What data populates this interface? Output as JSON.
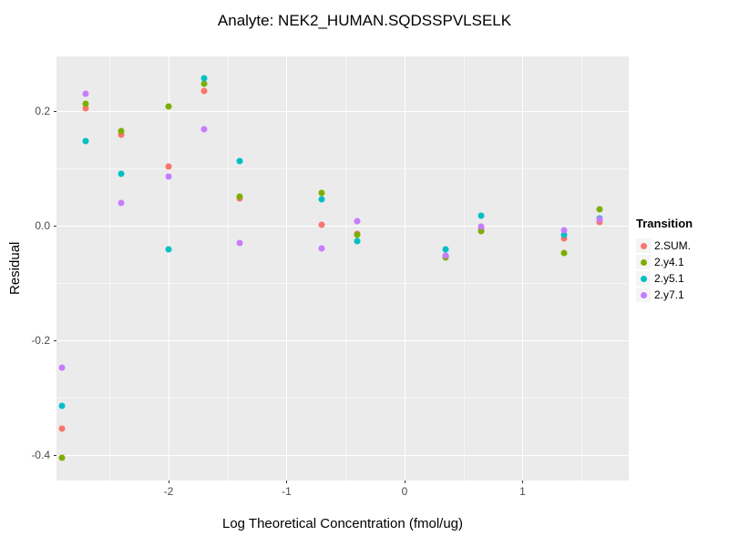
{
  "chart_data": {
    "type": "scatter",
    "title": "Analyte: NEK2_HUMAN.SQDSSPVLSELK",
    "xlabel": "Log Theoretical Concentration (fmol/ug)",
    "ylabel": "Residual",
    "xlim": [
      -2.95,
      1.9
    ],
    "ylim": [
      -0.445,
      0.295
    ],
    "grid": true,
    "panel_background": "#EBEBEB",
    "legend_title": "Transition",
    "legend_position": "right",
    "x_ticks": [
      {
        "v": -2,
        "label": "-2"
      },
      {
        "v": -1,
        "label": "-1"
      },
      {
        "v": 0,
        "label": "0"
      },
      {
        "v": 1,
        "label": "1"
      }
    ],
    "y_ticks": [
      {
        "v": 0.2,
        "label": "0.2"
      },
      {
        "v": 0.0,
        "label": "0.0"
      },
      {
        "v": -0.2,
        "label": "-0.2"
      },
      {
        "v": -0.4,
        "label": "-0.4"
      }
    ],
    "x_minor": [
      -2.5,
      -1.5,
      -0.5,
      0.5,
      1.5
    ],
    "y_minor": [
      0.1,
      -0.1,
      -0.3
    ],
    "series": [
      {
        "label": "2.SUM.",
        "color": "#F8766D",
        "points": [
          [
            -2.9,
            -0.355
          ],
          [
            -2.7,
            0.205
          ],
          [
            -2.4,
            0.158
          ],
          [
            -2.0,
            0.103
          ],
          [
            -1.7,
            0.235
          ],
          [
            -1.4,
            0.047
          ],
          [
            -0.7,
            0.001
          ],
          [
            -0.4,
            -0.014
          ],
          [
            0.35,
            -0.052
          ],
          [
            0.65,
            -0.005
          ],
          [
            1.35,
            -0.022
          ],
          [
            1.65,
            0.006
          ]
        ]
      },
      {
        "label": "2.y4.1",
        "color": "#7CAE00",
        "points": [
          [
            -2.9,
            -0.405
          ],
          [
            -2.7,
            0.213
          ],
          [
            -2.4,
            0.165
          ],
          [
            -2.0,
            0.207
          ],
          [
            -1.7,
            0.247
          ],
          [
            -1.4,
            0.05
          ],
          [
            -0.7,
            0.057
          ],
          [
            -0.4,
            -0.016
          ],
          [
            0.35,
            -0.056
          ],
          [
            0.65,
            -0.01
          ],
          [
            1.35,
            -0.048
          ],
          [
            1.65,
            0.028
          ]
        ]
      },
      {
        "label": "2.y5.1",
        "color": "#00BFC4",
        "points": [
          [
            -2.9,
            -0.315
          ],
          [
            -2.7,
            0.147
          ],
          [
            -2.4,
            0.09
          ],
          [
            -2.0,
            -0.042
          ],
          [
            -1.7,
            0.257
          ],
          [
            -1.4,
            0.113
          ],
          [
            -0.7,
            0.045
          ],
          [
            -0.4,
            -0.027
          ],
          [
            0.35,
            -0.042
          ],
          [
            0.65,
            0.017
          ],
          [
            1.35,
            -0.016
          ],
          [
            1.65,
            0.012
          ]
        ]
      },
      {
        "label": "2.y7.1",
        "color": "#C77CFF",
        "points": [
          [
            -2.9,
            -0.248
          ],
          [
            -2.7,
            0.23
          ],
          [
            -2.4,
            0.04
          ],
          [
            -2.0,
            0.085
          ],
          [
            -1.7,
            0.168
          ],
          [
            -1.4,
            -0.03
          ],
          [
            -0.7,
            -0.04
          ],
          [
            -0.4,
            0.007
          ],
          [
            0.35,
            -0.053
          ],
          [
            0.65,
            -0.002
          ],
          [
            1.35,
            -0.009
          ],
          [
            1.65,
            0.01
          ]
        ]
      }
    ]
  }
}
